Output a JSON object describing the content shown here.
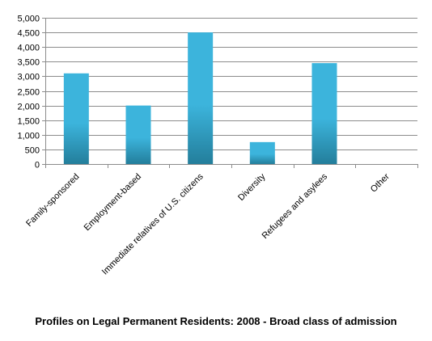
{
  "caption": "Profiles on Legal Permanent Residents: 2008 - Broad class of admission",
  "chart_data": {
    "type": "bar",
    "title": "",
    "xlabel": "",
    "ylabel": "",
    "categories": [
      "Family-sponsored",
      "Employment-based",
      "Immediate relatives of U.S. citizens",
      "Diversity",
      "Refugees and asylees",
      "Other"
    ],
    "values": [
      3100,
      2000,
      4500,
      750,
      3450,
      0
    ],
    "ylim": [
      0,
      5000
    ],
    "yticks": [
      0,
      500,
      1000,
      1500,
      2000,
      2500,
      3000,
      3500,
      4000,
      4500,
      5000
    ],
    "ytick_labels": [
      "0",
      "500",
      "1,000",
      "1,500",
      "2,000",
      "2,500",
      "3,000",
      "3,500",
      "4,000",
      "4,500",
      "5,000"
    ],
    "grid": true,
    "legend": "none",
    "colors": {
      "bar_top": "#3cb4dc",
      "bar_bottom": "#237e9b",
      "grid": "#8c8c8c",
      "axis": "#8c8c8c"
    }
  }
}
